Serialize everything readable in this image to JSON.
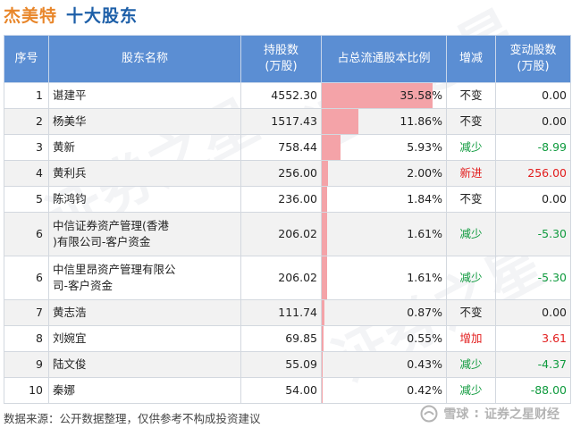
{
  "header": {
    "company": "杰美特",
    "section": "十大股东"
  },
  "table": {
    "columns": {
      "index": "序号",
      "holder": "股东名称",
      "shares_l1": "持股数",
      "shares_l2": "(万股)",
      "ratio": "占总流通股本比例",
      "change": "增减",
      "delta_l1": "变动股数",
      "delta_l2": "(万股)"
    },
    "rows": [
      {
        "rank": "1",
        "name_l1": "谌建平",
        "name_l2": "",
        "shares": "4552.30",
        "ratio": "35.58%",
        "ratio_value": 35.58,
        "change": "不变",
        "trend": "flat",
        "delta": "0.00"
      },
      {
        "rank": "2",
        "name_l1": "杨美华",
        "name_l2": "",
        "shares": "1517.43",
        "ratio": "11.86%",
        "ratio_value": 11.86,
        "change": "不变",
        "trend": "flat",
        "delta": "0.00"
      },
      {
        "rank": "3",
        "name_l1": "黄新",
        "name_l2": "",
        "shares": "758.44",
        "ratio": "5.93%",
        "ratio_value": 5.93,
        "change": "减少",
        "trend": "down",
        "delta": "-8.99"
      },
      {
        "rank": "4",
        "name_l1": "黄利兵",
        "name_l2": "",
        "shares": "256.00",
        "ratio": "2.00%",
        "ratio_value": 2.0,
        "change": "新进",
        "trend": "up",
        "delta": "256.00"
      },
      {
        "rank": "5",
        "name_l1": "陈鸿钧",
        "name_l2": "",
        "shares": "236.00",
        "ratio": "1.84%",
        "ratio_value": 1.84,
        "change": "不变",
        "trend": "flat",
        "delta": "0.00"
      },
      {
        "rank": "6",
        "name_l1": "中信证券资产管理(香港",
        "name_l2": ")有限公司-客户资金",
        "shares": "206.02",
        "ratio": "1.61%",
        "ratio_value": 1.61,
        "change": "减少",
        "trend": "down",
        "delta": "-5.30"
      },
      {
        "rank": "6",
        "name_l1": "中信里昂资产管理有限公",
        "name_l2": "司-客户资金",
        "shares": "206.02",
        "ratio": "1.61%",
        "ratio_value": 1.61,
        "change": "减少",
        "trend": "down",
        "delta": "-5.30"
      },
      {
        "rank": "7",
        "name_l1": "黄志浩",
        "name_l2": "",
        "shares": "111.74",
        "ratio": "0.87%",
        "ratio_value": 0.87,
        "change": "不变",
        "trend": "flat",
        "delta": "0.00"
      },
      {
        "rank": "8",
        "name_l1": "刘婉宜",
        "name_l2": "",
        "shares": "69.85",
        "ratio": "0.55%",
        "ratio_value": 0.55,
        "change": "增加",
        "trend": "up",
        "delta": "3.61"
      },
      {
        "rank": "9",
        "name_l1": "陆文俊",
        "name_l2": "",
        "shares": "55.09",
        "ratio": "0.43%",
        "ratio_value": 0.43,
        "change": "减少",
        "trend": "down",
        "delta": "-4.37"
      },
      {
        "rank": "10",
        "name_l1": "秦娜",
        "name_l2": "",
        "shares": "54.00",
        "ratio": "0.42%",
        "ratio_value": 0.42,
        "change": "减少",
        "trend": "down",
        "delta": "-88.00"
      }
    ]
  },
  "colors": {
    "header_bg": "#5b8ed3",
    "bar": "#f4a3a8",
    "up": "#e21c1c",
    "down": "#0e9a3d",
    "company": "#e8862a",
    "section": "#1d5fa8"
  },
  "watermark": {
    "text": "证券之星"
  },
  "footer": {
    "source": "数据来源：公开数据整理，仅供参考不构成投资建议",
    "brand_prefix": "雪球",
    "brand_suffix": "证券之星财经"
  }
}
